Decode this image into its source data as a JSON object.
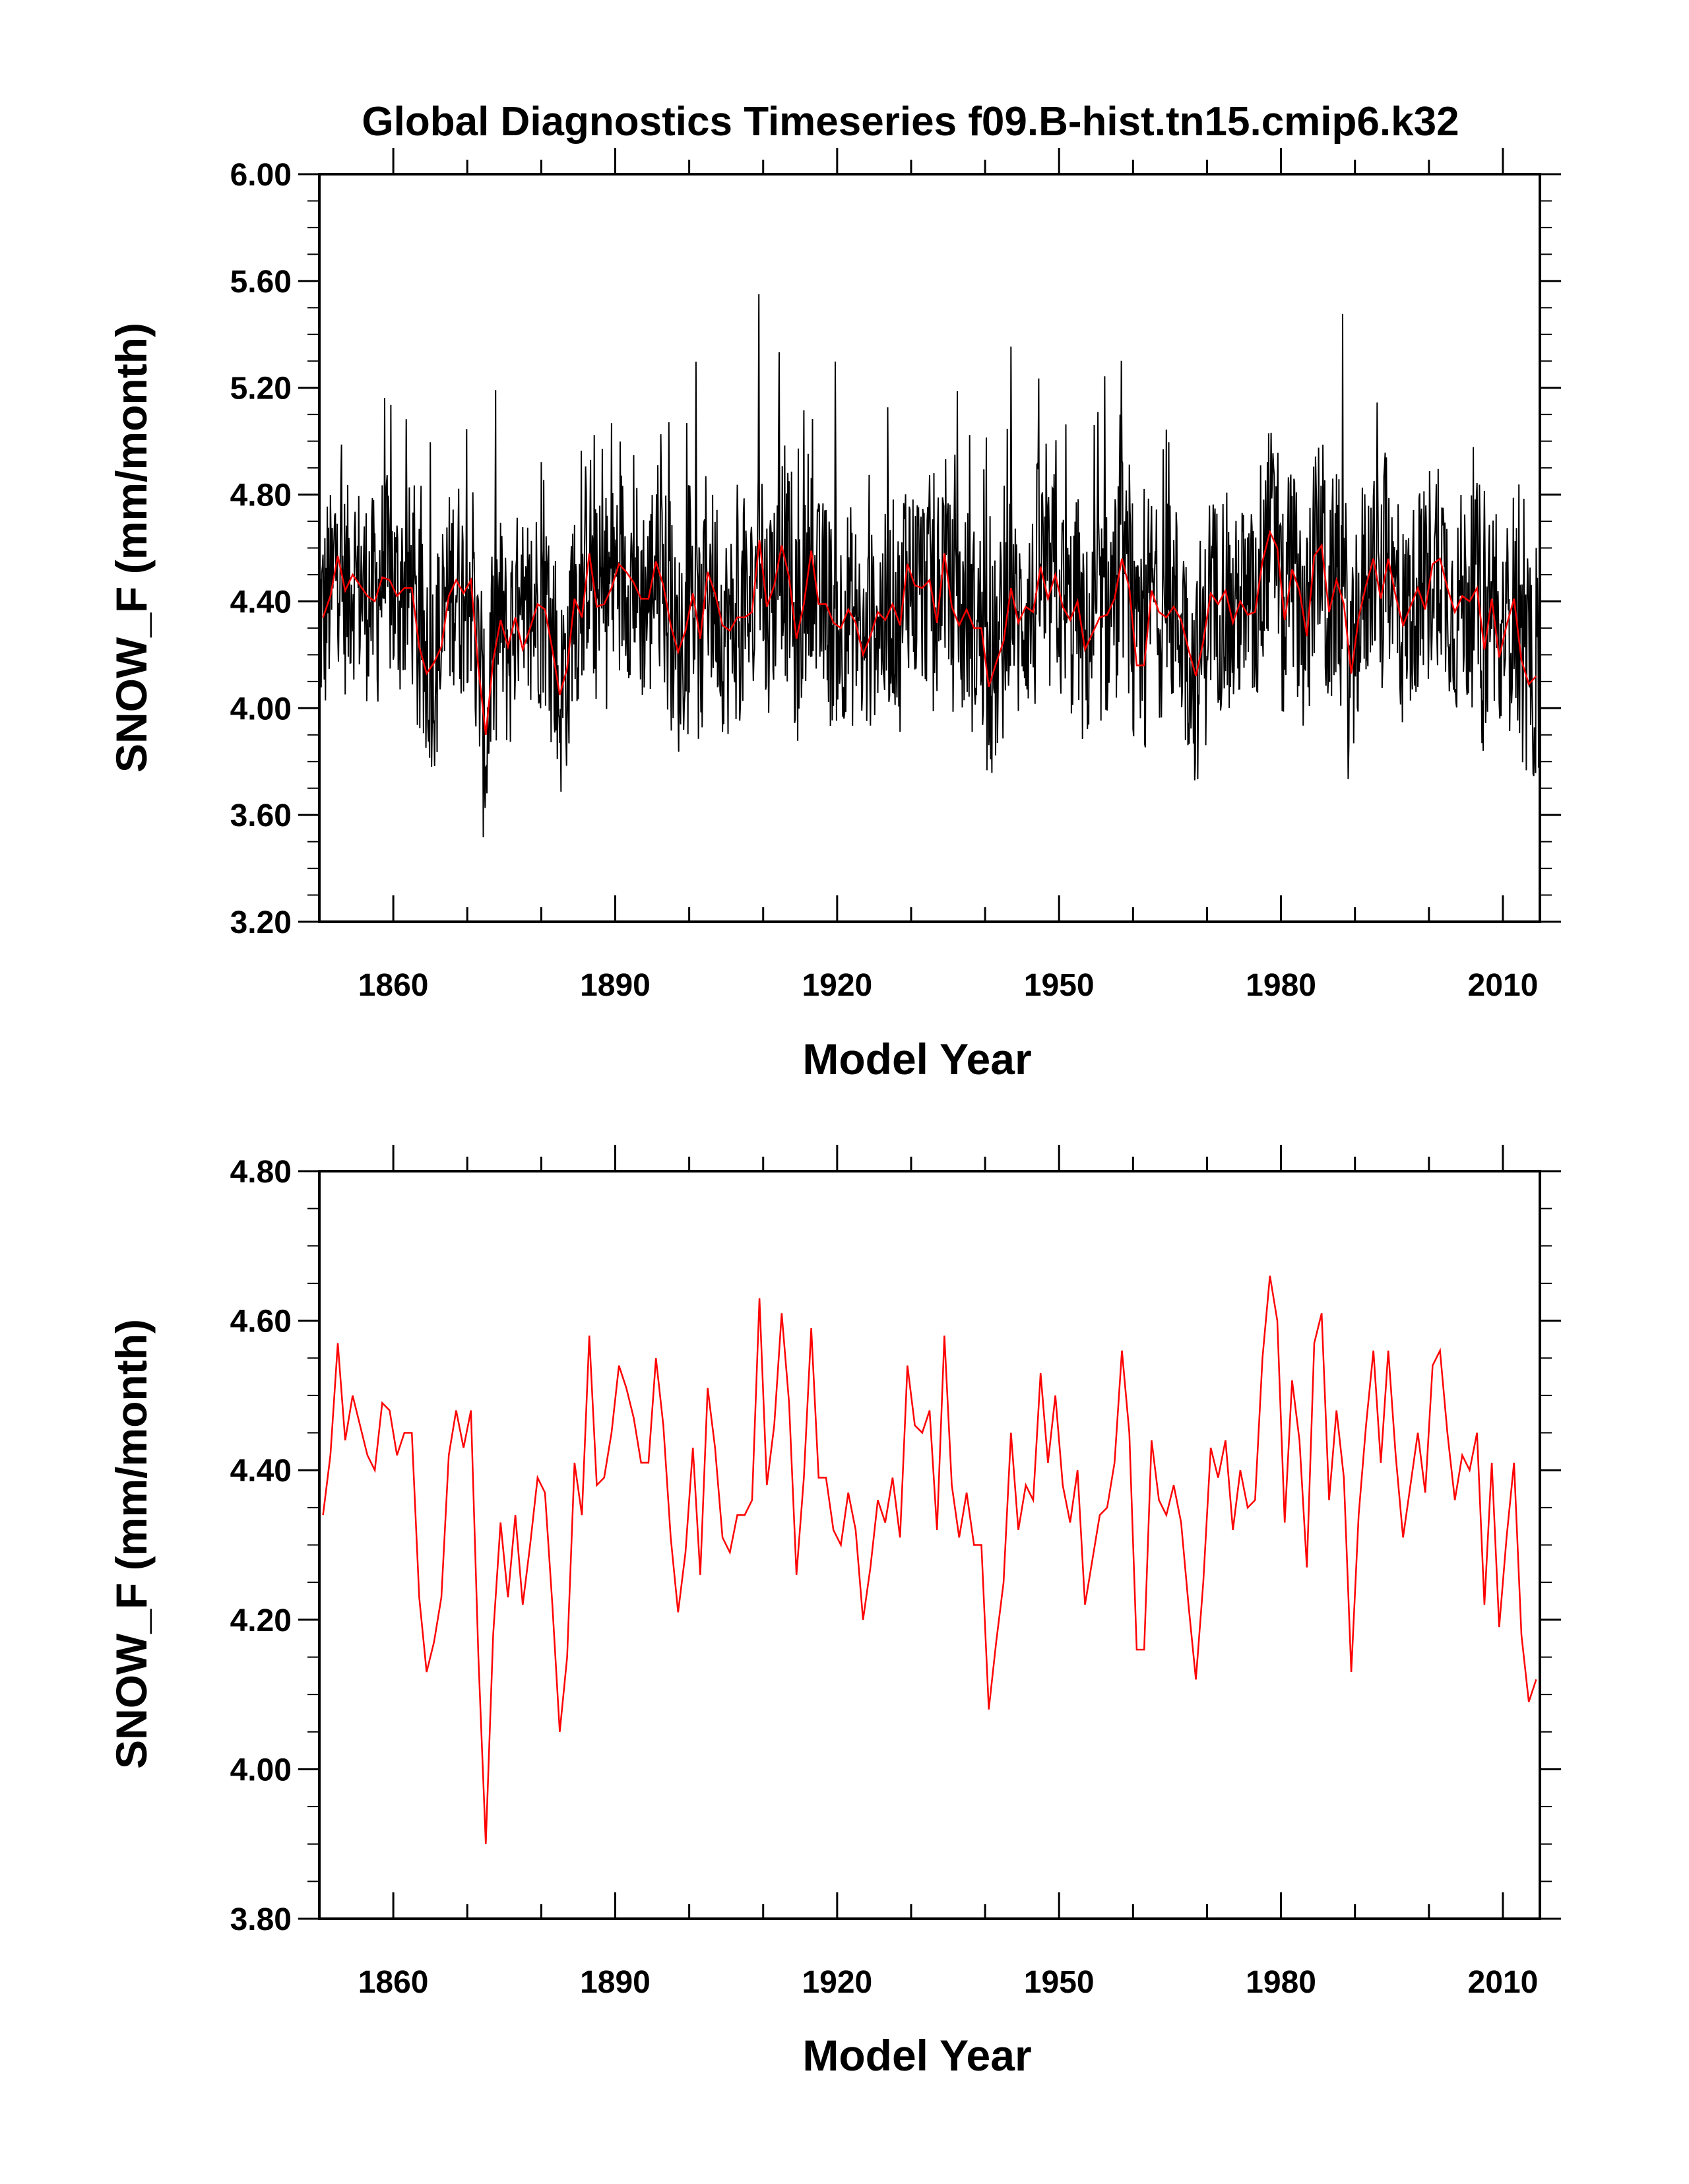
{
  "title": "Global Diagnostics Timeseries f09.B-hist.tn15.cmip6.k32",
  "colors": {
    "monthly": "#000000",
    "annual": "#ff0000",
    "axis": "#000000"
  },
  "chart_data": [
    {
      "type": "line",
      "name": "monthly-and-annual",
      "xlabel": "Model Year",
      "ylabel": "SNOW_F (mm/month)",
      "xlim": [
        1850,
        2015
      ],
      "ylim": [
        3.2,
        6.0
      ],
      "x_ticks": [
        "1860",
        "1890",
        "1920",
        "1950",
        "1980",
        "2010"
      ],
      "y_ticks": [
        "3.20",
        "3.60",
        "4.00",
        "4.40",
        "4.80",
        "5.20",
        "5.60",
        "6.00"
      ],
      "series": [
        {
          "name": "monthly",
          "color": "#000000",
          "frequency": "monthly",
          "start_year": 1850,
          "range_min": 3.45,
          "range_max": 5.69,
          "mean": 4.35
        },
        {
          "name": "annual",
          "color": "#ff0000",
          "ref": "annual_means"
        }
      ]
    },
    {
      "type": "line",
      "name": "annual",
      "xlabel": "Model Year",
      "ylabel": "SNOW_F (mm/month)",
      "xlim": [
        1850,
        2015
      ],
      "ylim": [
        3.8,
        4.8
      ],
      "x_ticks": [
        "1860",
        "1890",
        "1920",
        "1950",
        "1980",
        "2010"
      ],
      "y_ticks": [
        "3.80",
        "4.00",
        "4.20",
        "4.40",
        "4.60",
        "4.80"
      ],
      "series": [
        {
          "name": "annual",
          "color": "#ff0000",
          "ref": "annual_means"
        }
      ]
    }
  ],
  "annual_means": {
    "x_start": 1850.5,
    "x_step": 1,
    "values": [
      4.34,
      4.42,
      4.57,
      4.44,
      4.5,
      4.46,
      4.42,
      4.4,
      4.49,
      4.48,
      4.42,
      4.45,
      4.45,
      4.23,
      4.13,
      4.17,
      4.23,
      4.42,
      4.48,
      4.43,
      4.48,
      4.15,
      3.9,
      4.18,
      4.33,
      4.23,
      4.34,
      4.22,
      4.3,
      4.39,
      4.37,
      4.22,
      4.05,
      4.15,
      4.41,
      4.34,
      4.58,
      4.38,
      4.39,
      4.45,
      4.54,
      4.51,
      4.47,
      4.41,
      4.41,
      4.55,
      4.46,
      4.31,
      4.21,
      4.29,
      4.43,
      4.26,
      4.51,
      4.43,
      4.31,
      4.29,
      4.34,
      4.34,
      4.36,
      4.63,
      4.38,
      4.46,
      4.61,
      4.49,
      4.26,
      4.39,
      4.59,
      4.39,
      4.39,
      4.32,
      4.3,
      4.37,
      4.32,
      4.2,
      4.27,
      4.36,
      4.33,
      4.39,
      4.31,
      4.54,
      4.46,
      4.45,
      4.48,
      4.32,
      4.58,
      4.38,
      4.31,
      4.37,
      4.3,
      4.3,
      4.08,
      4.17,
      4.25,
      4.45,
      4.32,
      4.38,
      4.36,
      4.53,
      4.41,
      4.5,
      4.38,
      4.33,
      4.4,
      4.22,
      4.28,
      4.34,
      4.35,
      4.41,
      4.56,
      4.45,
      4.16,
      4.16,
      4.44,
      4.36,
      4.34,
      4.38,
      4.33,
      4.22,
      4.12,
      4.25,
      4.43,
      4.39,
      4.44,
      4.32,
      4.4,
      4.35,
      4.36,
      4.55,
      4.66,
      4.6,
      4.33,
      4.52,
      4.44,
      4.27,
      4.57,
      4.61,
      4.36,
      4.48,
      4.39,
      4.13,
      4.34,
      4.46,
      4.56,
      4.41,
      4.56,
      4.42,
      4.31,
      4.38,
      4.45,
      4.37,
      4.54,
      4.56,
      4.45,
      4.36,
      4.42,
      4.4,
      4.45,
      4.22,
      4.41,
      4.19,
      4.31,
      4.41,
      4.18,
      4.09,
      4.12
    ]
  }
}
